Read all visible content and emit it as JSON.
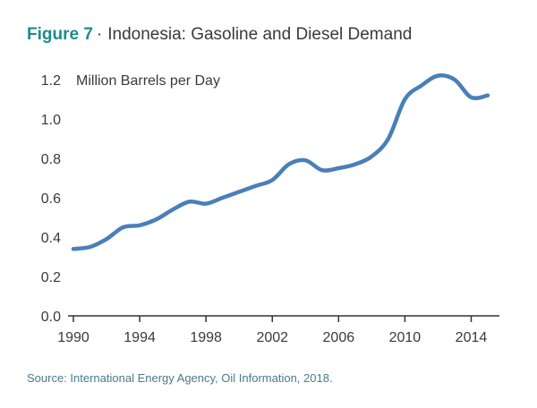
{
  "figure": {
    "number": "Figure 7",
    "separator": "·",
    "title": "Indonesia: Gasoline and Diesel Demand"
  },
  "source": "Source: International Energy Agency, Oil Information, 2018.",
  "colors": {
    "line": "#4a7fb8",
    "figure_number": "#1f8a8a",
    "axis": "#333333"
  },
  "chart_data": {
    "type": "line",
    "title": "Indonesia: Gasoline and Diesel Demand",
    "ylabel": "Million Barrels per Day",
    "xlabel": "",
    "xlim": [
      1990,
      2015
    ],
    "ylim": [
      0,
      1.2
    ],
    "x_ticks": [
      1990,
      1994,
      1998,
      2002,
      2006,
      2010,
      2014
    ],
    "y_ticks": [
      0.0,
      0.2,
      0.4,
      0.6,
      0.8,
      1.0,
      1.2
    ],
    "y_tick_labels": [
      "0.0",
      "0.2",
      "0.4",
      "0.6",
      "0.8",
      "1.0",
      "1.2"
    ],
    "grid": false,
    "series": [
      {
        "x": [
          1990,
          1991,
          1992,
          1993,
          1994,
          1995,
          1996,
          1997,
          1998,
          1999,
          2000,
          2001,
          2002,
          2003,
          2004,
          2005,
          2006,
          2007,
          2008,
          2009,
          2010,
          2011,
          2012,
          2013,
          2014,
          2015
        ],
        "values": [
          0.34,
          0.35,
          0.39,
          0.45,
          0.46,
          0.49,
          0.54,
          0.58,
          0.57,
          0.6,
          0.63,
          0.66,
          0.69,
          0.77,
          0.79,
          0.74,
          0.75,
          0.77,
          0.81,
          0.9,
          1.1,
          1.17,
          1.22,
          1.2,
          1.11,
          1.12
        ]
      }
    ]
  }
}
